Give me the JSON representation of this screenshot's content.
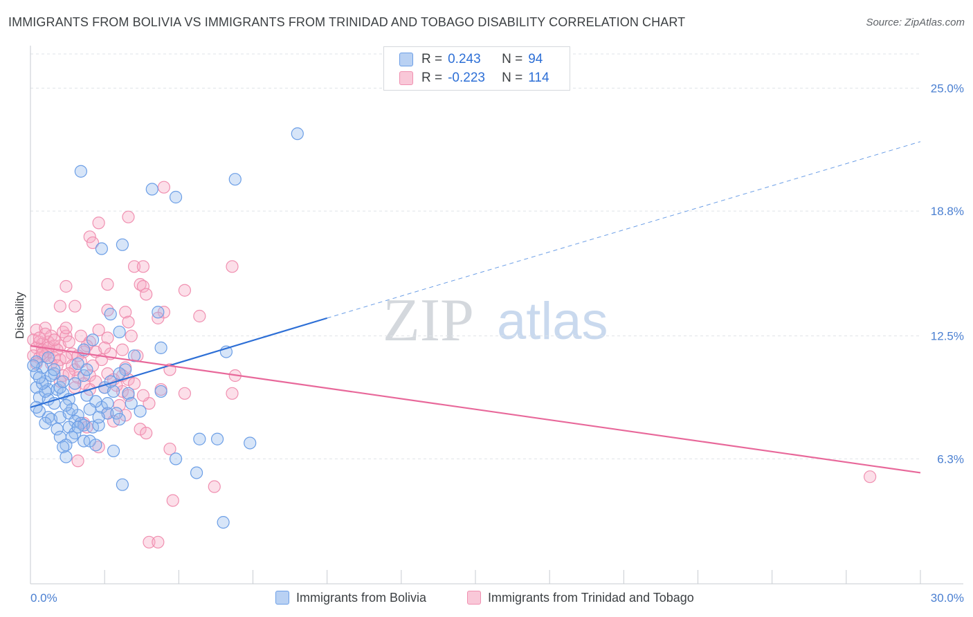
{
  "title": "IMMIGRANTS FROM BOLIVIA VS IMMIGRANTS FROM TRINIDAD AND TOBAGO DISABILITY CORRELATION CHART",
  "source": "Source: ZipAtlas.com",
  "watermark": {
    "zip": "ZIP",
    "atlas": "atlas"
  },
  "legend": {
    "rows": [
      {
        "r_label": "R =",
        "r_value": "0.243",
        "n_label": "N =",
        "n_value": "94"
      },
      {
        "r_label": "R =",
        "r_value": "-0.223",
        "n_label": "N =",
        "n_value": "114"
      }
    ]
  },
  "bottom_legend": {
    "series1": "Immigrants from Bolivia",
    "series2": "Immigrants from Trinidad and Tobago"
  },
  "chart_data": {
    "type": "scatter",
    "title": "IMMIGRANTS FROM BOLIVIA VS IMMIGRANTS FROM TRINIDAD AND TOBAGO DISABILITY CORRELATION CHART",
    "xlabel": "",
    "ylabel": "Disability",
    "xlim": [
      0,
      30
    ],
    "ylim": [
      0,
      27
    ],
    "x_tick_labels": [
      "0.0%",
      "30.0%"
    ],
    "y_tick_values": [
      6.3,
      12.5,
      18.8,
      25.0
    ],
    "y_tick_labels": [
      "6.3%",
      "12.5%",
      "18.8%",
      "25.0%"
    ],
    "grid": true,
    "legend_position": "top-center",
    "colors": {
      "bolivia": "#6b9ee6",
      "bolivia_line": "#2d6fd6",
      "trinidad": "#f08fb0",
      "trinidad_line": "#e8689a"
    },
    "trend_lines": [
      {
        "series": "Immigrants from Bolivia",
        "x": [
          0,
          10
        ],
        "y": [
          8.9,
          13.4
        ],
        "dashed_extension_to": [
          30,
          22.3
        ]
      },
      {
        "series": "Immigrants from Trinidad and Tobago",
        "x": [
          0,
          30
        ],
        "y": [
          12.0,
          5.6
        ]
      }
    ],
    "series": [
      {
        "name": "Immigrants from Bolivia",
        "points": [
          [
            9.0,
            22.7
          ],
          [
            1.7,
            20.8
          ],
          [
            6.9,
            20.4
          ],
          [
            4.1,
            19.9
          ],
          [
            4.9,
            19.5
          ],
          [
            2.4,
            16.9
          ],
          [
            3.1,
            17.1
          ],
          [
            2.7,
            13.6
          ],
          [
            3.0,
            12.7
          ],
          [
            4.3,
            13.7
          ],
          [
            2.1,
            12.3
          ],
          [
            4.4,
            11.9
          ],
          [
            6.6,
            11.7
          ],
          [
            3.5,
            11.5
          ],
          [
            1.8,
            11.8
          ],
          [
            0.2,
            11.2
          ],
          [
            0.4,
            10.9
          ],
          [
            0.2,
            10.6
          ],
          [
            0.5,
            10.2
          ],
          [
            0.8,
            10.6
          ],
          [
            0.1,
            11.0
          ],
          [
            0.2,
            9.9
          ],
          [
            0.6,
            9.8
          ],
          [
            0.9,
            9.8
          ],
          [
            1.1,
            9.6
          ],
          [
            0.3,
            9.4
          ],
          [
            0.6,
            9.3
          ],
          [
            0.8,
            9.1
          ],
          [
            1.3,
            9.3
          ],
          [
            1.8,
            10.5
          ],
          [
            1.9,
            10.8
          ],
          [
            3.2,
            10.8
          ],
          [
            3.0,
            10.6
          ],
          [
            2.5,
            9.9
          ],
          [
            2.8,
            9.7
          ],
          [
            3.3,
            9.6
          ],
          [
            4.4,
            9.7
          ],
          [
            2.4,
            8.9
          ],
          [
            2.6,
            8.6
          ],
          [
            2.9,
            8.6
          ],
          [
            3.0,
            8.3
          ],
          [
            3.7,
            8.7
          ],
          [
            0.6,
            8.4
          ],
          [
            0.7,
            8.3
          ],
          [
            1.0,
            8.4
          ],
          [
            1.3,
            8.6
          ],
          [
            1.6,
            8.5
          ],
          [
            1.5,
            8.2
          ],
          [
            1.7,
            8.1
          ],
          [
            1.8,
            8.0
          ],
          [
            0.9,
            7.8
          ],
          [
            1.3,
            7.9
          ],
          [
            1.5,
            7.6
          ],
          [
            1.6,
            7.9
          ],
          [
            2.1,
            7.9
          ],
          [
            2.3,
            8.0
          ],
          [
            1.0,
            7.4
          ],
          [
            1.4,
            7.4
          ],
          [
            1.8,
            7.2
          ],
          [
            2.0,
            7.2
          ],
          [
            1.2,
            7.0
          ],
          [
            1.1,
            6.9
          ],
          [
            2.2,
            7.0
          ],
          [
            2.8,
            6.7
          ],
          [
            1.2,
            6.4
          ],
          [
            5.7,
            7.3
          ],
          [
            6.3,
            7.3
          ],
          [
            7.4,
            7.1
          ],
          [
            4.9,
            6.3
          ],
          [
            5.6,
            5.6
          ],
          [
            3.1,
            5.0
          ],
          [
            6.5,
            3.1
          ],
          [
            0.3,
            8.7
          ],
          [
            0.5,
            9.7
          ],
          [
            1.0,
            9.9
          ],
          [
            0.4,
            10.1
          ],
          [
            2.2,
            9.2
          ],
          [
            0.7,
            10.5
          ],
          [
            1.4,
            8.8
          ],
          [
            2.6,
            9.1
          ],
          [
            0.3,
            10.4
          ],
          [
            1.1,
            10.2
          ],
          [
            0.2,
            8.9
          ],
          [
            1.9,
            9.5
          ],
          [
            2.3,
            8.4
          ],
          [
            3.4,
            9.1
          ],
          [
            0.5,
            8.1
          ],
          [
            1.2,
            9.0
          ],
          [
            2.0,
            8.8
          ],
          [
            0.8,
            10.8
          ],
          [
            1.5,
            10.1
          ],
          [
            2.7,
            10.2
          ],
          [
            0.6,
            11.4
          ],
          [
            1.6,
            11.1
          ]
        ]
      },
      {
        "name": "Immigrants from Trinidad and Tobago",
        "points": [
          [
            4.5,
            20.0
          ],
          [
            3.3,
            18.5
          ],
          [
            2.3,
            18.2
          ],
          [
            2.0,
            17.5
          ],
          [
            2.1,
            17.2
          ],
          [
            3.5,
            16.0
          ],
          [
            3.8,
            16.0
          ],
          [
            6.8,
            16.0
          ],
          [
            3.7,
            15.1
          ],
          [
            3.8,
            15.0
          ],
          [
            2.6,
            15.1
          ],
          [
            1.2,
            15.0
          ],
          [
            5.2,
            14.8
          ],
          [
            3.9,
            14.6
          ],
          [
            1.0,
            14.0
          ],
          [
            1.5,
            14.0
          ],
          [
            2.6,
            13.8
          ],
          [
            3.2,
            13.7
          ],
          [
            4.5,
            13.7
          ],
          [
            5.7,
            13.5
          ],
          [
            4.3,
            13.4
          ],
          [
            3.3,
            13.2
          ],
          [
            0.2,
            12.8
          ],
          [
            0.5,
            12.9
          ],
          [
            1.1,
            12.7
          ],
          [
            0.7,
            12.5
          ],
          [
            1.2,
            12.5
          ],
          [
            1.7,
            12.5
          ],
          [
            2.6,
            12.4
          ],
          [
            3.4,
            12.5
          ],
          [
            0.1,
            12.3
          ],
          [
            0.3,
            12.2
          ],
          [
            0.4,
            12.1
          ],
          [
            0.6,
            12.2
          ],
          [
            0.8,
            12.0
          ],
          [
            1.0,
            12.0
          ],
          [
            1.3,
            12.2
          ],
          [
            2.0,
            12.2
          ],
          [
            0.2,
            11.9
          ],
          [
            0.4,
            11.8
          ],
          [
            0.6,
            11.7
          ],
          [
            0.9,
            11.8
          ],
          [
            1.4,
            11.6
          ],
          [
            1.8,
            11.7
          ],
          [
            2.2,
            11.7
          ],
          [
            3.1,
            11.8
          ],
          [
            0.1,
            11.5
          ],
          [
            0.3,
            11.4
          ],
          [
            0.5,
            11.5
          ],
          [
            0.8,
            11.4
          ],
          [
            1.0,
            11.3
          ],
          [
            1.2,
            11.4
          ],
          [
            1.6,
            11.5
          ],
          [
            2.4,
            11.3
          ],
          [
            3.6,
            11.5
          ],
          [
            1.4,
            11.0
          ],
          [
            2.1,
            11.0
          ],
          [
            3.2,
            10.9
          ],
          [
            4.7,
            10.8
          ],
          [
            1.1,
            10.5
          ],
          [
            1.6,
            10.4
          ],
          [
            2.0,
            10.5
          ],
          [
            2.6,
            10.6
          ],
          [
            3.1,
            10.5
          ],
          [
            6.9,
            10.5
          ],
          [
            1.0,
            10.2
          ],
          [
            1.8,
            10.1
          ],
          [
            2.2,
            10.2
          ],
          [
            2.8,
            10.3
          ],
          [
            3.3,
            10.3
          ],
          [
            1.5,
            9.9
          ],
          [
            2.0,
            9.8
          ],
          [
            2.5,
            9.9
          ],
          [
            3.1,
            9.7
          ],
          [
            4.4,
            9.8
          ],
          [
            5.2,
            9.6
          ],
          [
            6.8,
            9.6
          ],
          [
            3.3,
            9.5
          ],
          [
            3.0,
            9.0
          ],
          [
            4.0,
            9.1
          ],
          [
            2.6,
            8.6
          ],
          [
            3.2,
            8.5
          ],
          [
            1.8,
            8.1
          ],
          [
            2.8,
            8.2
          ],
          [
            1.9,
            7.9
          ],
          [
            3.7,
            7.8
          ],
          [
            3.9,
            7.6
          ],
          [
            2.3,
            6.9
          ],
          [
            4.7,
            6.8
          ],
          [
            1.6,
            6.2
          ],
          [
            6.2,
            4.9
          ],
          [
            4.8,
            4.2
          ],
          [
            4.0,
            2.1
          ],
          [
            4.3,
            2.1
          ],
          [
            28.3,
            5.4
          ],
          [
            0.2,
            11.1
          ],
          [
            0.5,
            12.6
          ],
          [
            0.7,
            11.1
          ],
          [
            1.2,
            12.9
          ],
          [
            1.9,
            12.0
          ],
          [
            2.3,
            12.8
          ],
          [
            0.9,
            11.0
          ],
          [
            1.5,
            10.8
          ],
          [
            2.7,
            11.6
          ],
          [
            3.5,
            10.1
          ],
          [
            0.3,
            12.4
          ],
          [
            0.6,
            11.9
          ],
          [
            1.7,
            11.2
          ],
          [
            2.9,
            10.0
          ],
          [
            3.8,
            9.5
          ],
          [
            0.4,
            11.6
          ],
          [
            1.3,
            10.6
          ],
          [
            2.5,
            11.9
          ],
          [
            0.8,
            12.3
          ]
        ]
      }
    ]
  }
}
